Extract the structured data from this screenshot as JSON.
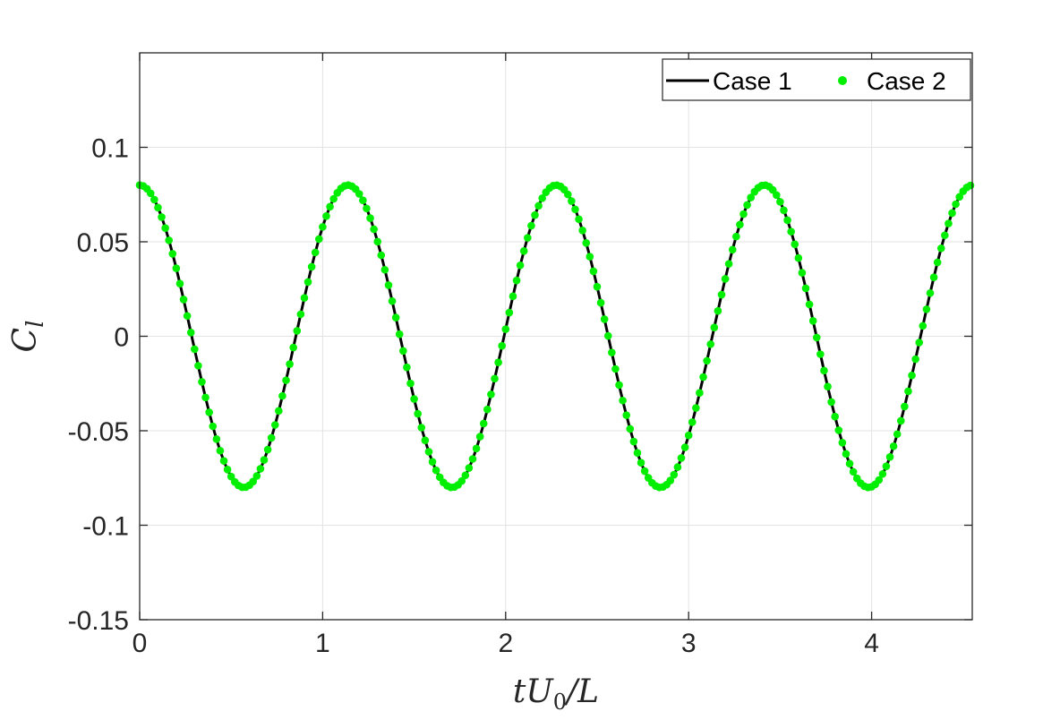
{
  "chart_data": {
    "type": "line",
    "title": "",
    "xlabel": "tU₀/L",
    "ylabel": "Cₗ",
    "xlim": [
      0,
      4.55
    ],
    "ylim": [
      -0.15,
      0.15
    ],
    "xticks": [
      0,
      1,
      2,
      3,
      4
    ],
    "xtick_labels": [
      "0",
      "1",
      "2",
      "3",
      "4"
    ],
    "yticks": [
      -0.15,
      -0.1,
      -0.05,
      0,
      0.05,
      0.1
    ],
    "ytick_labels": [
      "-0.15",
      "-0.1",
      "-0.05",
      "0",
      "0.05",
      "0.1"
    ],
    "grid": true,
    "legend_position": "top-right",
    "series": [
      {
        "name": "Case 1",
        "style": "line",
        "color": "#000000",
        "function": "cosine",
        "amplitude": 0.08,
        "period": 1.138,
        "phase": 0,
        "x_range": [
          0,
          4.55
        ],
        "peaks_x": [
          0,
          1.138,
          2.276,
          3.414,
          4.552
        ],
        "troughs_x": [
          0.569,
          1.707,
          2.845,
          3.983
        ]
      },
      {
        "name": "Case 2",
        "style": "markers",
        "color": "#00ee00",
        "function": "cosine",
        "amplitude": 0.08,
        "period": 1.138,
        "phase": 0,
        "x_range": [
          0,
          4.55
        ],
        "sample_spacing": 0.02,
        "peaks_x": [
          0,
          1.138,
          2.276,
          3.414,
          4.552
        ],
        "troughs_x": [
          0.569,
          1.707,
          2.845,
          3.983
        ]
      }
    ]
  }
}
